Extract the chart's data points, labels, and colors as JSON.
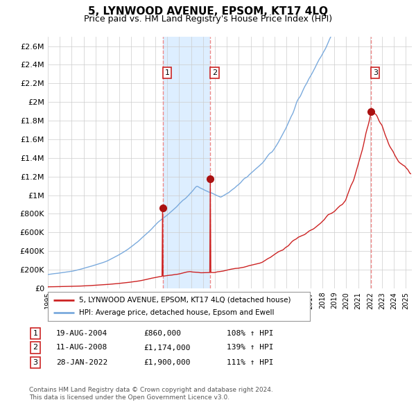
{
  "title": "5, LYNWOOD AVENUE, EPSOM, KT17 4LQ",
  "subtitle": "Price paid vs. HM Land Registry's House Price Index (HPI)",
  "ylim": [
    0,
    2700000
  ],
  "yticks": [
    0,
    200000,
    400000,
    600000,
    800000,
    1000000,
    1200000,
    1400000,
    1600000,
    1800000,
    2000000,
    2200000,
    2400000,
    2600000
  ],
  "ytick_labels": [
    "£0",
    "£200K",
    "£400K",
    "£600K",
    "£800K",
    "£1M",
    "£1.2M",
    "£1.4M",
    "£1.6M",
    "£1.8M",
    "£2M",
    "£2.2M",
    "£2.4M",
    "£2.6M"
  ],
  "line1_color": "#cc2222",
  "line2_color": "#7aaadd",
  "marker_color": "#aa1111",
  "vline_color": "#ee8888",
  "label_color": "#cc2222",
  "shade_color": "#ddeeff",
  "purchase_dates": [
    2004.63,
    2008.61,
    2022.08
  ],
  "purchase_prices": [
    860000,
    1174000,
    1900000
  ],
  "purchase_labels": [
    "1",
    "2",
    "3"
  ],
  "legend_line1": "5, LYNWOOD AVENUE, EPSOM, KT17 4LQ (detached house)",
  "legend_line2": "HPI: Average price, detached house, Epsom and Ewell",
  "table_rows": [
    [
      "1",
      "19-AUG-2004",
      "£860,000",
      "108% ↑ HPI"
    ],
    [
      "2",
      "11-AUG-2008",
      "£1,174,000",
      "139% ↑ HPI"
    ],
    [
      "3",
      "28-JAN-2022",
      "£1,900,000",
      "111% ↑ HPI"
    ]
  ],
  "footnote1": "Contains HM Land Registry data © Crown copyright and database right 2024.",
  "footnote2": "This data is licensed under the Open Government Licence v3.0.",
  "xmin": 1995,
  "xmax": 2025.5,
  "background_color": "#ffffff",
  "plot_bg_color": "#ffffff",
  "grid_color": "#cccccc"
}
